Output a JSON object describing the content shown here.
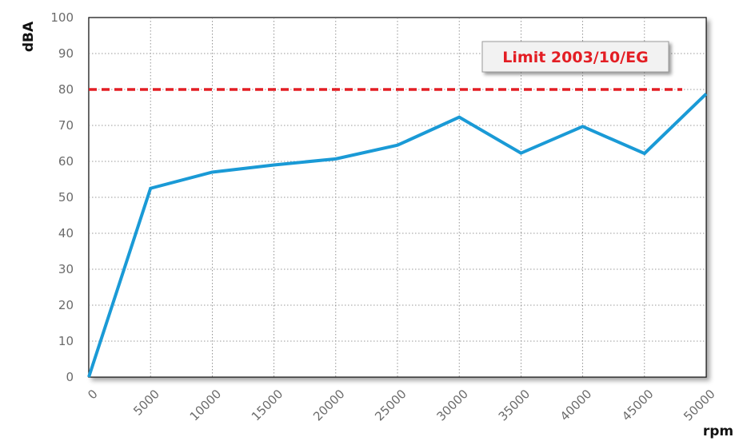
{
  "chart_data": {
    "type": "line",
    "title": "",
    "xlabel": "rpm",
    "ylabel": "dBA",
    "x": [
      0,
      5000,
      10000,
      15000,
      20000,
      25000,
      30000,
      35000,
      40000,
      45000,
      50000
    ],
    "x_tick_labels": [
      "0",
      "5000",
      "10000",
      "15000",
      "20000",
      "25000",
      "30000",
      "35000",
      "40000",
      "45000",
      "50000"
    ],
    "y_ticks": [
      0,
      10,
      20,
      30,
      40,
      50,
      60,
      70,
      80,
      90,
      100
    ],
    "xlim": [
      0,
      50000
    ],
    "ylim": [
      0,
      100
    ],
    "grid": true,
    "series": [
      {
        "values": [
          0,
          52.5,
          57,
          59,
          60.7,
          64.5,
          72.3,
          62.3,
          69.7,
          62.2,
          78.8
        ],
        "color": "#1a9ad6",
        "style": "solid"
      }
    ],
    "reference_lines": [
      {
        "y": 80,
        "color": "#e31e24",
        "style": "dashed"
      }
    ],
    "annotations": [
      {
        "text": "Limit 2003/10/EG",
        "color": "#e31e24"
      }
    ],
    "x_tick_rotation": -45
  }
}
